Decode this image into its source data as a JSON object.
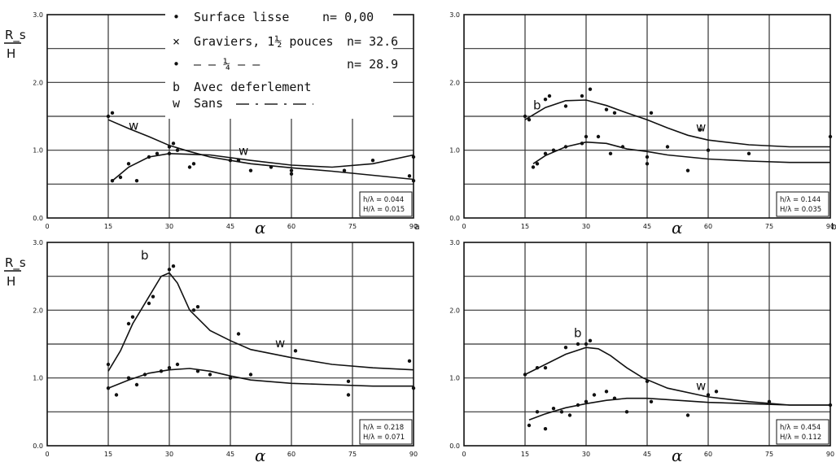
{
  "figure": {
    "legend": {
      "entries": [
        {
          "marker": "•",
          "label": "Surface lisse",
          "n": "n= 0,00"
        },
        {
          "marker": "×",
          "label": "Graviers, 1½ pouces",
          "n": "n= 32.6"
        },
        {
          "marker": "•",
          "label": "— — ¼ — —",
          "n": "n= 28.9"
        }
      ],
      "curve_labels": [
        {
          "key": "b",
          "text": "Avec deferlement"
        },
        {
          "key": "w",
          "text": "Sans"
        }
      ]
    },
    "panel_letters": {
      "a": "a",
      "b": "b"
    }
  },
  "chart_data": [
    {
      "type": "scatter",
      "ylabel_num": "R_s",
      "ylabel_den": "H",
      "xlabel": "α",
      "xlim": [
        0,
        90
      ],
      "ylim": [
        0,
        3.0
      ],
      "xticks": [
        0,
        15,
        30,
        45,
        60,
        75,
        90
      ],
      "yticks": [
        0,
        1.0,
        2.0,
        3.0
      ],
      "grid": true,
      "params": [
        "h/λ = 0.044",
        "H/λ = 0.015"
      ],
      "letter": "a",
      "series": [
        {
          "name": "b",
          "curve": [
            [
              15,
              1.45
            ],
            [
              20,
              1.32
            ],
            [
              25,
              1.2
            ],
            [
              30,
              1.07
            ],
            [
              35,
              0.98
            ],
            [
              40,
              0.9
            ],
            [
              45,
              0.85
            ],
            [
              50,
              0.8
            ],
            [
              55,
              0.77
            ],
            [
              60,
              0.74
            ],
            [
              70,
              0.69
            ],
            [
              80,
              0.63
            ],
            [
              90,
              0.57
            ]
          ],
          "points": [
            [
              15,
              1.5
            ],
            [
              16,
              1.55
            ],
            [
              30,
              1.05
            ],
            [
              31,
              1.1
            ],
            [
              47,
              0.85
            ],
            [
              55,
              0.75
            ],
            [
              60,
              0.7
            ],
            [
              90,
              0.55
            ],
            [
              89,
              0.62
            ]
          ]
        },
        {
          "name": "w",
          "curve": [
            [
              16,
              0.55
            ],
            [
              20,
              0.75
            ],
            [
              25,
              0.9
            ],
            [
              30,
              0.95
            ],
            [
              40,
              0.93
            ],
            [
              50,
              0.85
            ],
            [
              60,
              0.78
            ],
            [
              70,
              0.75
            ],
            [
              80,
              0.8
            ],
            [
              90,
              0.93
            ]
          ],
          "points": [
            [
              16,
              0.55
            ],
            [
              18,
              0.6
            ],
            [
              20,
              0.8
            ],
            [
              22,
              0.55
            ],
            [
              25,
              0.9
            ],
            [
              27,
              0.95
            ],
            [
              30,
              0.95
            ],
            [
              32,
              1.0
            ],
            [
              35,
              0.75
            ],
            [
              36,
              0.8
            ],
            [
              45,
              0.85
            ],
            [
              50,
              0.7
            ],
            [
              60,
              0.65
            ],
            [
              73,
              0.7
            ],
            [
              80,
              0.85
            ],
            [
              90,
              0.9
            ]
          ]
        }
      ],
      "curve_labels": [
        {
          "text": "w",
          "x": 20,
          "y": 1.3
        },
        {
          "text": "w",
          "x": 47,
          "y": 0.93
        }
      ]
    },
    {
      "type": "scatter",
      "ylabel_num": "",
      "ylabel_den": "",
      "xlabel": "α",
      "xlim": [
        0,
        90
      ],
      "ylim": [
        0,
        3.0
      ],
      "xticks": [
        0,
        15,
        30,
        45,
        60,
        75,
        90
      ],
      "yticks": [
        0,
        1.0,
        2.0,
        3.0
      ],
      "grid": true,
      "params": [
        "h/λ = 0.144",
        "H/λ = 0.035"
      ],
      "letter": "b",
      "series": [
        {
          "name": "b",
          "curve": [
            [
              15,
              1.45
            ],
            [
              20,
              1.63
            ],
            [
              25,
              1.73
            ],
            [
              30,
              1.74
            ],
            [
              35,
              1.66
            ],
            [
              40,
              1.55
            ],
            [
              45,
              1.45
            ],
            [
              50,
              1.33
            ],
            [
              55,
              1.22
            ],
            [
              60,
              1.15
            ],
            [
              70,
              1.08
            ],
            [
              80,
              1.05
            ],
            [
              90,
              1.05
            ]
          ],
          "points": [
            [
              15,
              1.5
            ],
            [
              16,
              1.45
            ],
            [
              20,
              1.75
            ],
            [
              21,
              1.8
            ],
            [
              25,
              1.65
            ],
            [
              29,
              1.8
            ],
            [
              31,
              1.9
            ],
            [
              35,
              1.6
            ],
            [
              37,
              1.55
            ],
            [
              46,
              1.55
            ],
            [
              58,
              1.3
            ],
            [
              90,
              1.2
            ]
          ]
        },
        {
          "name": "w",
          "curve": [
            [
              17,
              0.8
            ],
            [
              20,
              0.92
            ],
            [
              25,
              1.05
            ],
            [
              30,
              1.12
            ],
            [
              35,
              1.1
            ],
            [
              40,
              1.02
            ],
            [
              45,
              0.98
            ],
            [
              50,
              0.93
            ],
            [
              60,
              0.87
            ],
            [
              70,
              0.84
            ],
            [
              80,
              0.82
            ],
            [
              90,
              0.82
            ]
          ],
          "points": [
            [
              17,
              0.75
            ],
            [
              18,
              0.8
            ],
            [
              20,
              0.95
            ],
            [
              22,
              1.0
            ],
            [
              25,
              1.05
            ],
            [
              29,
              1.1
            ],
            [
              30,
              1.2
            ],
            [
              33,
              1.2
            ],
            [
              36,
              0.95
            ],
            [
              39,
              1.05
            ],
            [
              45,
              0.9
            ],
            [
              45,
              0.8
            ],
            [
              50,
              1.05
            ],
            [
              55,
              0.7
            ],
            [
              60,
              1.0
            ],
            [
              70,
              0.95
            ]
          ]
        }
      ],
      "curve_labels": [
        {
          "text": "b",
          "x": 17,
          "y": 1.6
        },
        {
          "text": "w",
          "x": 57,
          "y": 1.28
        }
      ]
    },
    {
      "type": "scatter",
      "ylabel_num": "R_s",
      "ylabel_den": "H",
      "xlabel": "α",
      "xlim": [
        0,
        90
      ],
      "ylim": [
        0,
        3.0
      ],
      "xticks": [
        0,
        15,
        30,
        45,
        60,
        75,
        90
      ],
      "yticks": [
        0,
        1.0,
        2.0,
        3.0
      ],
      "grid": true,
      "params": [
        "h/λ = 0.218",
        "H/λ = 0.071"
      ],
      "letter": "",
      "series": [
        {
          "name": "b",
          "curve": [
            [
              15,
              1.1
            ],
            [
              18,
              1.4
            ],
            [
              21,
              1.8
            ],
            [
              25,
              2.2
            ],
            [
              28,
              2.5
            ],
            [
              30,
              2.55
            ],
            [
              32,
              2.4
            ],
            [
              35,
              2.0
            ],
            [
              40,
              1.7
            ],
            [
              45,
              1.55
            ],
            [
              50,
              1.42
            ],
            [
              60,
              1.3
            ],
            [
              70,
              1.2
            ],
            [
              80,
              1.15
            ],
            [
              90,
              1.12
            ]
          ],
          "points": [
            [
              15,
              1.2
            ],
            [
              20,
              1.8
            ],
            [
              21,
              1.9
            ],
            [
              25,
              2.1
            ],
            [
              26,
              2.2
            ],
            [
              30,
              2.6
            ],
            [
              31,
              2.65
            ],
            [
              36,
              2.0
            ],
            [
              37,
              2.05
            ],
            [
              47,
              1.65
            ],
            [
              61,
              1.4
            ],
            [
              89,
              1.25
            ]
          ]
        },
        {
          "name": "w",
          "curve": [
            [
              15,
              0.85
            ],
            [
              20,
              0.97
            ],
            [
              25,
              1.07
            ],
            [
              30,
              1.12
            ],
            [
              35,
              1.14
            ],
            [
              40,
              1.1
            ],
            [
              45,
              1.03
            ],
            [
              50,
              0.97
            ],
            [
              60,
              0.92
            ],
            [
              70,
              0.9
            ],
            [
              80,
              0.88
            ],
            [
              90,
              0.88
            ]
          ],
          "points": [
            [
              15,
              0.85
            ],
            [
              17,
              0.75
            ],
            [
              20,
              1.0
            ],
            [
              22,
              0.9
            ],
            [
              24,
              1.05
            ],
            [
              28,
              1.1
            ],
            [
              30,
              1.15
            ],
            [
              32,
              1.2
            ],
            [
              37,
              1.1
            ],
            [
              40,
              1.05
            ],
            [
              45,
              1.0
            ],
            [
              50,
              1.05
            ],
            [
              74,
              0.95
            ],
            [
              74,
              0.75
            ],
            [
              90,
              0.85
            ]
          ]
        }
      ],
      "curve_labels": [
        {
          "text": "b",
          "x": 23,
          "y": 2.75
        },
        {
          "text": "w",
          "x": 56,
          "y": 1.45
        }
      ]
    },
    {
      "type": "scatter",
      "ylabel_num": "",
      "ylabel_den": "",
      "xlabel": "α",
      "xlim": [
        0,
        90
      ],
      "ylim": [
        0,
        3.0
      ],
      "xticks": [
        0,
        15,
        30,
        45,
        60,
        75,
        90
      ],
      "yticks": [
        0,
        1.0,
        2.0,
        3.0
      ],
      "grid": true,
      "params": [
        "h/λ = 0.454",
        "H/λ = 0.112"
      ],
      "letter": "",
      "series": [
        {
          "name": "b",
          "curve": [
            [
              15,
              1.05
            ],
            [
              20,
              1.2
            ],
            [
              25,
              1.35
            ],
            [
              30,
              1.45
            ],
            [
              33,
              1.43
            ],
            [
              36,
              1.33
            ],
            [
              40,
              1.15
            ],
            [
              44,
              1.0
            ],
            [
              50,
              0.85
            ],
            [
              60,
              0.72
            ],
            [
              70,
              0.65
            ],
            [
              80,
              0.6
            ],
            [
              90,
              0.6
            ]
          ],
          "points": [
            [
              15,
              1.05
            ],
            [
              18,
              1.15
            ],
            [
              20,
              1.15
            ],
            [
              25,
              1.45
            ],
            [
              28,
              1.5
            ],
            [
              30,
              1.5
            ],
            [
              31,
              1.55
            ],
            [
              45,
              0.95
            ],
            [
              62,
              0.8
            ],
            [
              90,
              0.6
            ]
          ]
        },
        {
          "name": "w",
          "curve": [
            [
              16,
              0.38
            ],
            [
              20,
              0.47
            ],
            [
              25,
              0.56
            ],
            [
              30,
              0.62
            ],
            [
              35,
              0.67
            ],
            [
              40,
              0.7
            ],
            [
              45,
              0.7
            ],
            [
              50,
              0.68
            ],
            [
              60,
              0.64
            ],
            [
              70,
              0.62
            ],
            [
              80,
              0.6
            ],
            [
              90,
              0.6
            ]
          ],
          "points": [
            [
              16,
              0.3
            ],
            [
              18,
              0.5
            ],
            [
              20,
              0.25
            ],
            [
              22,
              0.55
            ],
            [
              24,
              0.5
            ],
            [
              26,
              0.45
            ],
            [
              28,
              0.6
            ],
            [
              30,
              0.65
            ],
            [
              32,
              0.75
            ],
            [
              35,
              0.8
            ],
            [
              37,
              0.7
            ],
            [
              40,
              0.5
            ],
            [
              46,
              0.65
            ],
            [
              55,
              0.45
            ],
            [
              60,
              0.75
            ],
            [
              75,
              0.65
            ]
          ]
        }
      ],
      "curve_labels": [
        {
          "text": "b",
          "x": 27,
          "y": 1.6
        },
        {
          "text": "w",
          "x": 57,
          "y": 0.82
        }
      ]
    }
  ]
}
